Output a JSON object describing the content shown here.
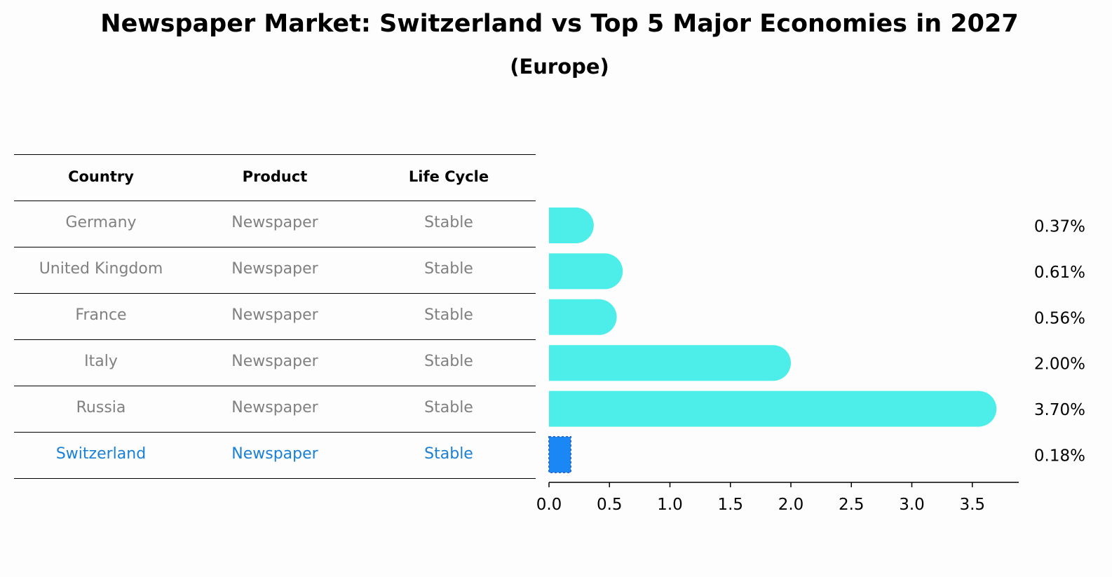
{
  "title": "Newspaper Market: Switzerland vs Top 5 Major Economies in 2027",
  "subtitle": "(Europe)",
  "table": {
    "headers": [
      "Country",
      "Product",
      "Life Cycle"
    ],
    "rows": [
      {
        "country": "Germany",
        "product": "Newspaper",
        "life_cycle": "Stable"
      },
      {
        "country": "United Kingdom",
        "product": "Newspaper",
        "life_cycle": "Stable"
      },
      {
        "country": "France",
        "product": "Newspaper",
        "life_cycle": "Stable"
      },
      {
        "country": "Italy",
        "product": "Newspaper",
        "life_cycle": "Stable"
      },
      {
        "country": "Russia",
        "product": "Newspaper",
        "life_cycle": "Stable"
      },
      {
        "country": "Switzerland",
        "product": "Newspaper",
        "life_cycle": "Stable"
      }
    ],
    "highlight_country": "Switzerland",
    "text_color": "#808080",
    "highlight_color": "#1a80d6"
  },
  "chart_data": {
    "type": "bar",
    "orientation": "horizontal",
    "categories": [
      "Germany",
      "United Kingdom",
      "France",
      "Italy",
      "Russia",
      "Switzerland"
    ],
    "values": [
      0.37,
      0.61,
      0.56,
      2.0,
      3.7,
      0.18
    ],
    "value_labels": [
      "0.37%",
      "0.61%",
      "0.56%",
      "2.00%",
      "3.70%",
      "0.18%"
    ],
    "xlim": [
      0,
      3.9
    ],
    "xticks": [
      "0.0",
      "0.5",
      "1.0",
      "1.5",
      "2.0",
      "2.5",
      "3.0",
      "3.5"
    ],
    "xlabel": "",
    "ylabel": "",
    "grid": false,
    "bar_color": "#4deeea",
    "highlight_color": "#1a87f5",
    "highlight_category": "Switzerland"
  }
}
